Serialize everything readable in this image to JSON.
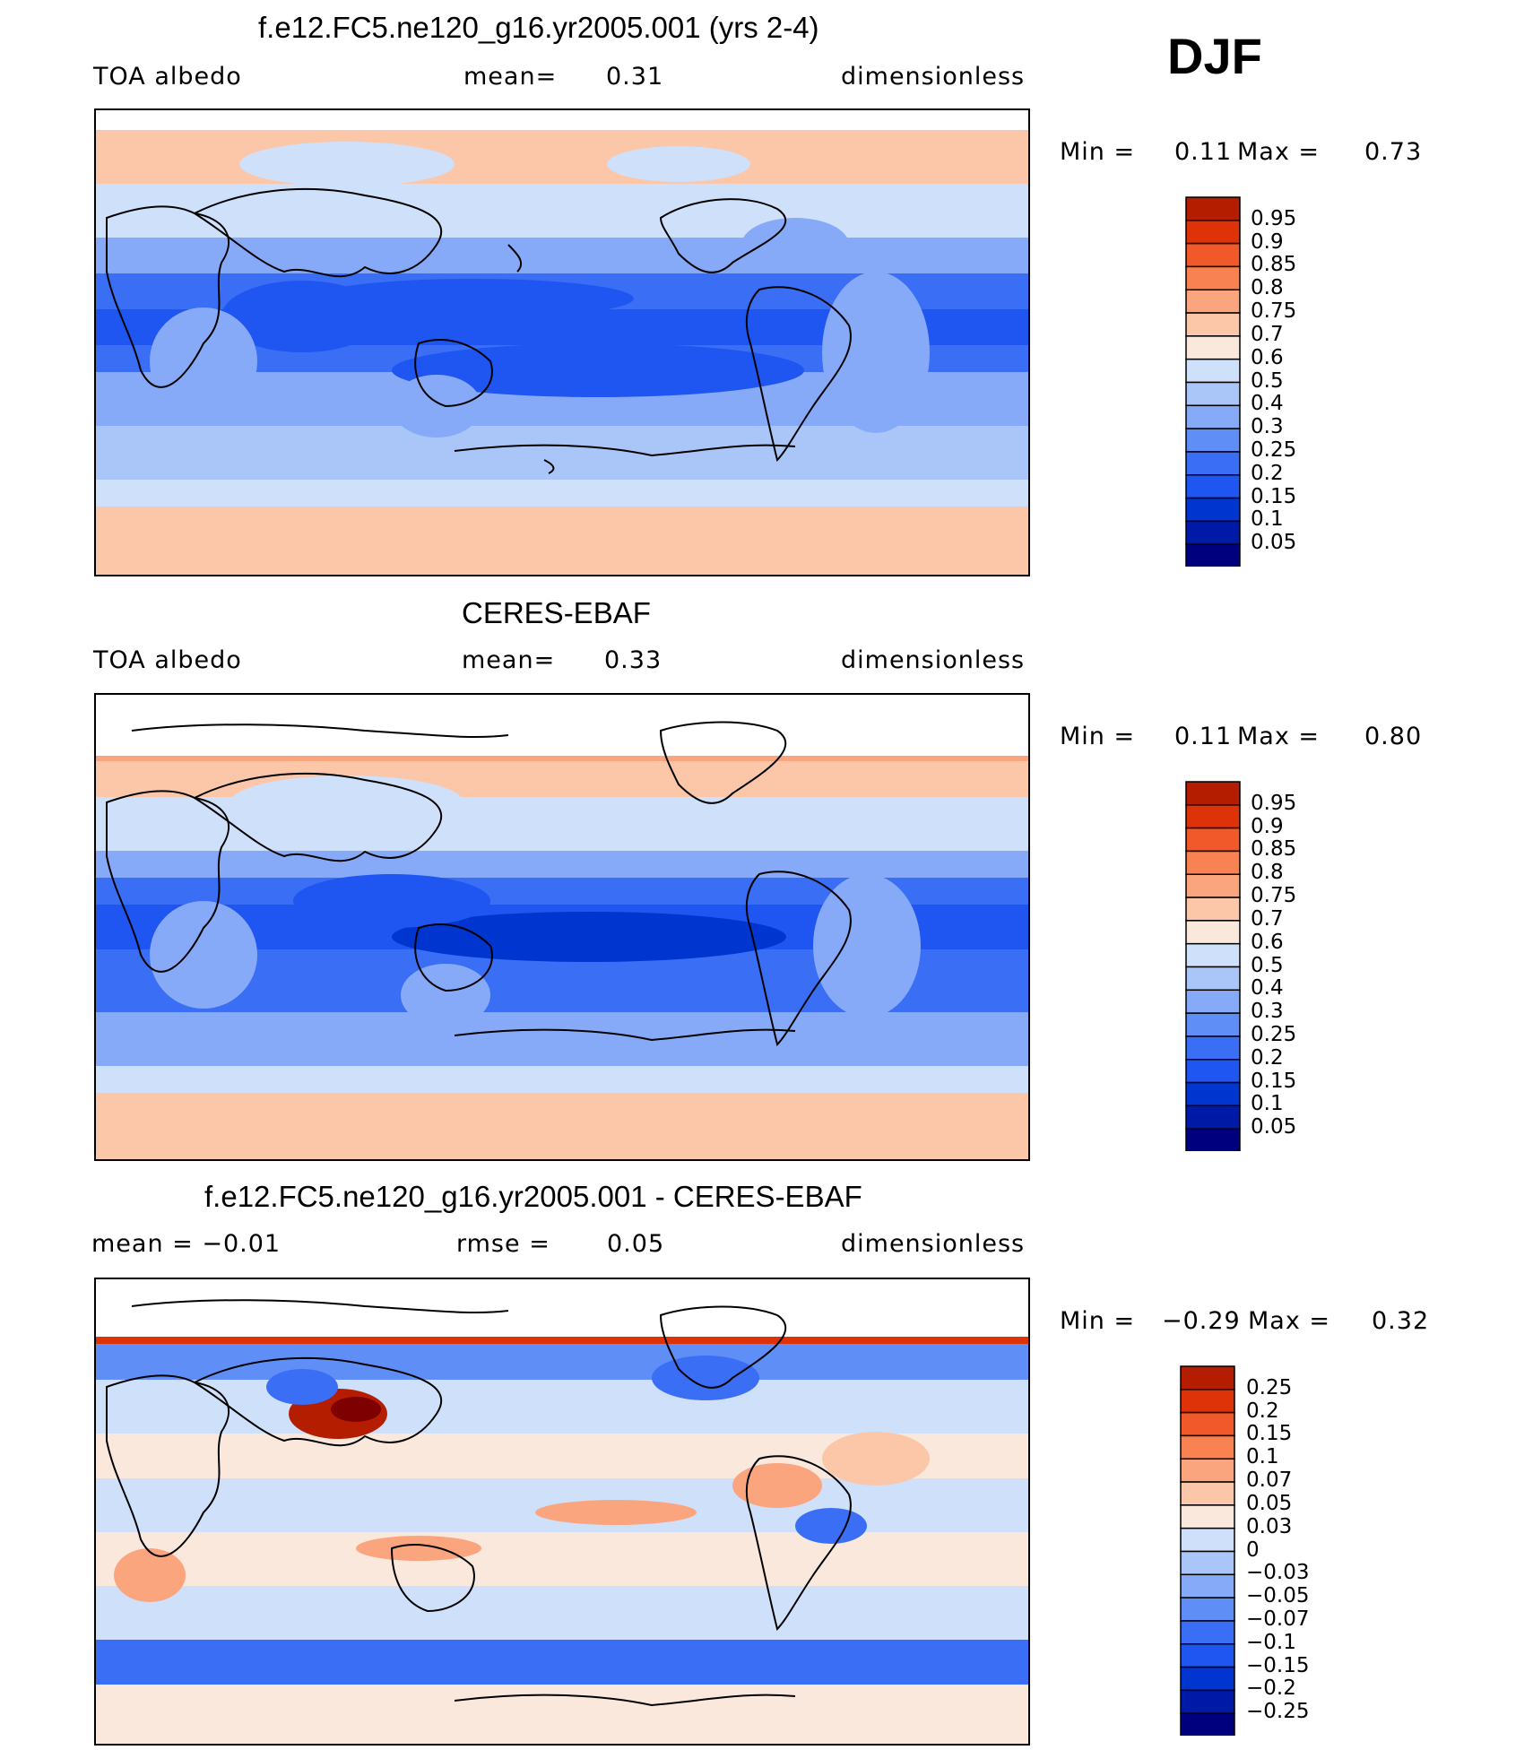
{
  "season": "DJF",
  "colors": {
    "absolute": [
      "#00007f",
      "#001aa8",
      "#0035d0",
      "#1f55f0",
      "#3a6ff5",
      "#5f8ef7",
      "#86aaf8",
      "#aac6f8",
      "#cfe0fb",
      "#fbe8dc",
      "#fcc6a9",
      "#fba57e",
      "#f98252",
      "#f2592a",
      "#de3209",
      "#b41d00",
      "#7f0000"
    ],
    "difference": [
      "#00007f",
      "#001aa8",
      "#0035d0",
      "#1f55f0",
      "#3a6ff5",
      "#5f8ef7",
      "#86aaf8",
      "#aac6f8",
      "#cfe0fb",
      "#fbe8dc",
      "#fcc6a9",
      "#fba57e",
      "#f98252",
      "#f2592a",
      "#de3209",
      "#b41d00",
      "#7f0000"
    ]
  },
  "panels": [
    {
      "title": "f.e12.FC5.ne120_g16.yr2005.001 (yrs 2-4)",
      "left": "TOA  albedo",
      "mid_label": "mean=",
      "mid_value": "0.31",
      "right": "dimensionless",
      "min_label": "Min  =",
      "min_value": "0.11",
      "max_label": "Max  =",
      "max_value": "0.73",
      "levels": [
        "0.95",
        "0.9",
        "0.85",
        "0.8",
        "0.75",
        "0.7",
        "0.6",
        "0.5",
        "0.4",
        "0.3",
        "0.25",
        "0.2",
        "0.15",
        "0.1",
        "0.05"
      ]
    },
    {
      "title": "CERES-EBAF",
      "left": "TOA  albedo",
      "mid_label": "mean=",
      "mid_value": "0.33",
      "right": "dimensionless",
      "min_label": "Min  =",
      "min_value": "0.11",
      "max_label": "Max  =",
      "max_value": "0.80",
      "levels": [
        "0.95",
        "0.9",
        "0.85",
        "0.8",
        "0.75",
        "0.7",
        "0.6",
        "0.5",
        "0.4",
        "0.3",
        "0.25",
        "0.2",
        "0.15",
        "0.1",
        "0.05"
      ]
    },
    {
      "title": "f.e12.FC5.ne120_g16.yr2005.001 - CERES-EBAF",
      "left": "mean  =   −0.01",
      "mid_label": "rmse  =",
      "mid_value": "0.05",
      "right": "dimensionless",
      "min_label": "Min  =",
      "min_value": "−0.29",
      "max_label": "Max  =",
      "max_value": "0.32",
      "levels": [
        "0.25",
        "0.2",
        "0.15",
        "0.1",
        "0.07",
        "0.05",
        "0.03",
        "0",
        "−0.03",
        "−0.05",
        "−0.07",
        "−0.1",
        "−0.15",
        "−0.2",
        "−0.25"
      ]
    }
  ]
}
